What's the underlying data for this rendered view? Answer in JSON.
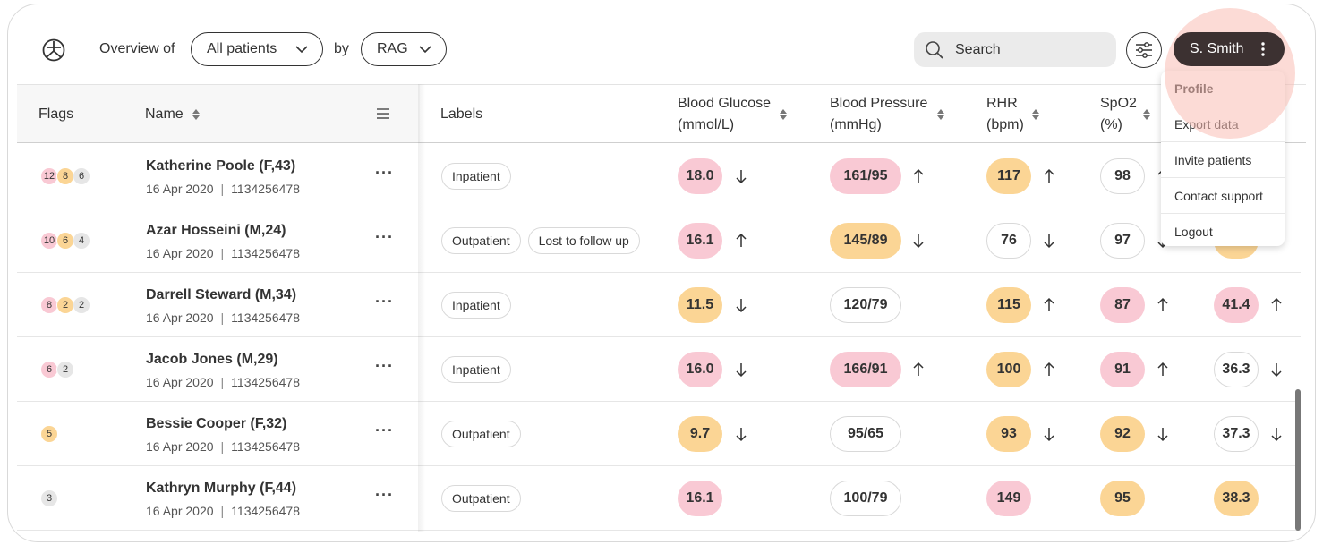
{
  "header": {
    "overview_label": "Overview of",
    "patients_select": "All patients",
    "by_label": "by",
    "group_select": "RAG",
    "search_placeholder": "Search",
    "user_name": "S. Smith"
  },
  "user_menu": {
    "items": [
      "Profile",
      "Export data",
      "Invite patients",
      "Contact support",
      "Logout"
    ],
    "active": "Profile"
  },
  "columns": {
    "flags": "Flags",
    "name": "Name",
    "labels": "Labels",
    "glucose": [
      "Blood Glucose",
      "(mmol/L)"
    ],
    "pressure": [
      "Blood Pressure",
      "(mmHg)"
    ],
    "rhr": [
      "RHR",
      "(bpm)"
    ],
    "spo2": [
      "SpO2",
      "(%)"
    ]
  },
  "colors": {
    "red": "#f9c9d4",
    "amber": "#fbd595",
    "grey": "#e6e6e6",
    "user_button": "#3c3131",
    "highlight": "#fabeb4"
  },
  "patients": [
    {
      "name": "Katherine Poole (F,43)",
      "date": "16 Apr 2020",
      "id": "1134256478",
      "flags": [
        {
          "v": "12",
          "c": "red"
        },
        {
          "v": "8",
          "c": "amber"
        },
        {
          "v": "6",
          "c": "grey"
        }
      ],
      "labels": [
        "Inpatient"
      ],
      "glucose": {
        "v": "18.0",
        "c": "red",
        "t": "down"
      },
      "pressure": {
        "v": "161/95",
        "c": "red",
        "t": "up"
      },
      "rhr": {
        "v": "117",
        "c": "amber",
        "t": "up"
      },
      "spo2": {
        "v": "98",
        "c": "none",
        "t": "up"
      },
      "extra": {
        "v": "",
        "c": "none",
        "t": ""
      }
    },
    {
      "name": "Azar Hosseini (M,24)",
      "date": "16 Apr 2020",
      "id": "1134256478",
      "flags": [
        {
          "v": "10",
          "c": "red"
        },
        {
          "v": "6",
          "c": "amber"
        },
        {
          "v": "4",
          "c": "grey"
        }
      ],
      "labels": [
        "Outpatient",
        "Lost to follow up"
      ],
      "glucose": {
        "v": "16.1",
        "c": "red",
        "t": "up"
      },
      "pressure": {
        "v": "145/89",
        "c": "amber",
        "t": "down"
      },
      "rhr": {
        "v": "76",
        "c": "none",
        "t": "down"
      },
      "spo2": {
        "v": "97",
        "c": "none",
        "t": "down"
      },
      "extra": {
        "v": "",
        "c": "amber",
        "t": ""
      }
    },
    {
      "name": "Darrell Steward (M,34)",
      "date": "16 Apr 2020",
      "id": "1134256478",
      "flags": [
        {
          "v": "8",
          "c": "red"
        },
        {
          "v": "2",
          "c": "amber"
        },
        {
          "v": "2",
          "c": "grey"
        }
      ],
      "labels": [
        "Inpatient"
      ],
      "glucose": {
        "v": "11.5",
        "c": "amber",
        "t": "down"
      },
      "pressure": {
        "v": "120/79",
        "c": "none",
        "t": ""
      },
      "rhr": {
        "v": "115",
        "c": "amber",
        "t": "up"
      },
      "spo2": {
        "v": "87",
        "c": "red",
        "t": "up"
      },
      "extra": {
        "v": "41.4",
        "c": "red",
        "t": "up"
      }
    },
    {
      "name": "Jacob Jones (M,29)",
      "date": "16 Apr 2020",
      "id": "1134256478",
      "flags": [
        {
          "v": "6",
          "c": "red"
        },
        {
          "v": "2",
          "c": "grey"
        }
      ],
      "labels": [
        "Inpatient"
      ],
      "glucose": {
        "v": "16.0",
        "c": "red",
        "t": "down"
      },
      "pressure": {
        "v": "166/91",
        "c": "red",
        "t": "up"
      },
      "rhr": {
        "v": "100",
        "c": "amber",
        "t": "up"
      },
      "spo2": {
        "v": "91",
        "c": "red",
        "t": "up"
      },
      "extra": {
        "v": "36.3",
        "c": "none",
        "t": "down"
      }
    },
    {
      "name": "Bessie Cooper (F,32)",
      "date": "16 Apr 2020",
      "id": "1134256478",
      "flags": [
        {
          "v": "5",
          "c": "amber"
        }
      ],
      "labels": [
        "Outpatient"
      ],
      "glucose": {
        "v": "9.7",
        "c": "amber",
        "t": "down"
      },
      "pressure": {
        "v": "95/65",
        "c": "none",
        "t": ""
      },
      "rhr": {
        "v": "93",
        "c": "amber",
        "t": "down"
      },
      "spo2": {
        "v": "92",
        "c": "amber",
        "t": "down"
      },
      "extra": {
        "v": "37.3",
        "c": "none",
        "t": "down"
      }
    },
    {
      "name": "Kathryn Murphy (F,44)",
      "date": "16 Apr 2020",
      "id": "1134256478",
      "flags": [
        {
          "v": "3",
          "c": "grey"
        }
      ],
      "labels": [
        "Outpatient"
      ],
      "glucose": {
        "v": "16.1",
        "c": "red",
        "t": ""
      },
      "pressure": {
        "v": "100/79",
        "c": "none",
        "t": ""
      },
      "rhr": {
        "v": "149",
        "c": "red",
        "t": ""
      },
      "spo2": {
        "v": "95",
        "c": "amber",
        "t": ""
      },
      "extra": {
        "v": "38.3",
        "c": "amber",
        "t": ""
      }
    }
  ]
}
